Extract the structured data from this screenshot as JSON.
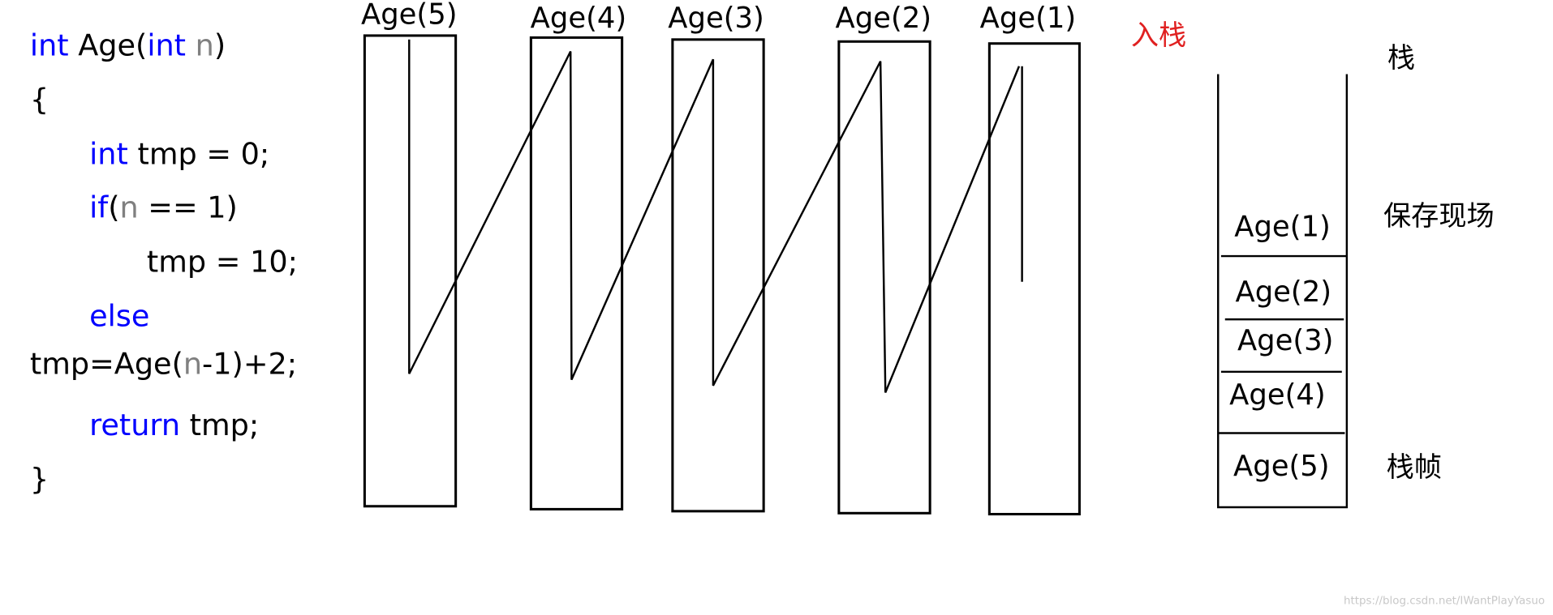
{
  "code": {
    "lines": [
      [
        "int",
        " Age(",
        "int",
        " n",
        ")"
      ],
      [
        "{"
      ],
      [
        "int",
        " tmp = 0;"
      ],
      [
        "if",
        "(",
        "n",
        " == 1)"
      ],
      [
        "tmp = 10;"
      ],
      [
        "else"
      ],
      [
        "tmp=Age(",
        "n",
        "-1)+2;"
      ],
      [
        "return",
        " tmp;"
      ],
      [
        "}"
      ]
    ]
  },
  "frames": [
    "Age(5)",
    "Age(4)",
    "Age(3)",
    "Age(2)",
    "Age(1)"
  ],
  "push_label": "入栈",
  "stack": {
    "title": "栈",
    "items": [
      "Age(1)",
      "Age(2)",
      "Age(3)",
      "Age(4)",
      "Age(5)"
    ],
    "save_label": "保存现场",
    "frame_label": "栈帧"
  },
  "watermark": "https://blog.csdn.net/IWantPlayYasuo"
}
